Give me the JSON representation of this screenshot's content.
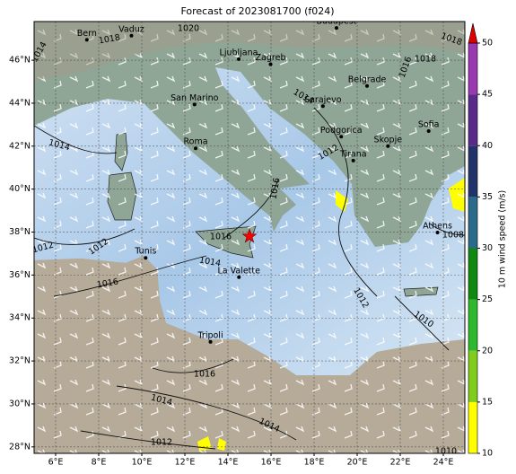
{
  "title": "Forecast of 2023081700 (f024)",
  "map": {
    "xlim": [
      5,
      25
    ],
    "ylim": [
      27.7,
      47.8
    ],
    "xticks": [
      {
        "value": 6,
        "label": "6°E"
      },
      {
        "value": 8,
        "label": "8°E"
      },
      {
        "value": 10,
        "label": "10°E"
      },
      {
        "value": 12,
        "label": "12°E"
      },
      {
        "value": 14,
        "label": "14°E"
      },
      {
        "value": 16,
        "label": "16°E"
      },
      {
        "value": 18,
        "label": "18°E"
      },
      {
        "value": 20,
        "label": "20°E"
      },
      {
        "value": 22,
        "label": "22°E"
      },
      {
        "value": 24,
        "label": "24°E"
      }
    ],
    "yticks": [
      {
        "value": 28,
        "label": "28°N"
      },
      {
        "value": 30,
        "label": "30°N"
      },
      {
        "value": 32,
        "label": "32°N"
      },
      {
        "value": 34,
        "label": "34°N"
      },
      {
        "value": 36,
        "label": "36°N"
      },
      {
        "value": 38,
        "label": "38°N"
      },
      {
        "value": 40,
        "label": "40°N"
      },
      {
        "value": 42,
        "label": "42°N"
      },
      {
        "value": 44,
        "label": "44°N"
      },
      {
        "value": 46,
        "label": "46°N"
      }
    ],
    "grid": true
  },
  "cities": [
    {
      "name": "Bern",
      "lon": 7.45,
      "lat": 46.95
    },
    {
      "name": "Vaduz",
      "lon": 9.52,
      "lat": 47.14
    },
    {
      "name": "Ljubljana",
      "lon": 14.5,
      "lat": 46.05
    },
    {
      "name": "Zagreb",
      "lon": 15.98,
      "lat": 45.81
    },
    {
      "name": "Budapest",
      "lon": 19.04,
      "lat": 47.5
    },
    {
      "name": "Belgrade",
      "lon": 20.46,
      "lat": 44.8
    },
    {
      "name": "Sarajevo",
      "lon": 18.41,
      "lat": 43.86
    },
    {
      "name": "San Marino",
      "lon": 12.45,
      "lat": 43.94
    },
    {
      "name": "Roma",
      "lon": 12.5,
      "lat": 41.9
    },
    {
      "name": "Podgorica",
      "lon": 19.26,
      "lat": 42.44
    },
    {
      "name": "Skopje",
      "lon": 21.43,
      "lat": 42.0
    },
    {
      "name": "Tirana",
      "lon": 19.82,
      "lat": 41.33
    },
    {
      "name": "Sofia",
      "lon": 23.32,
      "lat": 42.7
    },
    {
      "name": "Athens",
      "lon": 23.73,
      "lat": 37.98
    },
    {
      "name": "Tunis",
      "lon": 10.18,
      "lat": 36.8
    },
    {
      "name": "La Valette",
      "lon": 14.51,
      "lat": 35.9
    },
    {
      "name": "Tripoli",
      "lon": 13.19,
      "lat": 32.89
    }
  ],
  "marker": {
    "lon": 15.0,
    "lat": 37.8,
    "color": "#ff0000"
  },
  "isobar_labels": [
    1014,
    1018,
    1020,
    1018,
    1018,
    1016,
    1014,
    1012,
    1012,
    1016,
    1016,
    1014,
    1016,
    1014,
    1012,
    1008,
    1012,
    1010,
    1016,
    1014,
    1014,
    1012,
    1010
  ],
  "colorbar": {
    "label": "10 m wind speed (m/s)",
    "lim": [
      10,
      50
    ],
    "ticks": [
      10,
      15,
      20,
      25,
      30,
      35,
      40,
      45,
      50
    ],
    "colors": [
      "#ffff00",
      "#7fcc1a",
      "#2eb82e",
      "#118811",
      "#2a6a8a",
      "#22336a",
      "#5a2a8a",
      "#9a3ab0"
    ],
    "extend_color": "#e00000"
  }
}
